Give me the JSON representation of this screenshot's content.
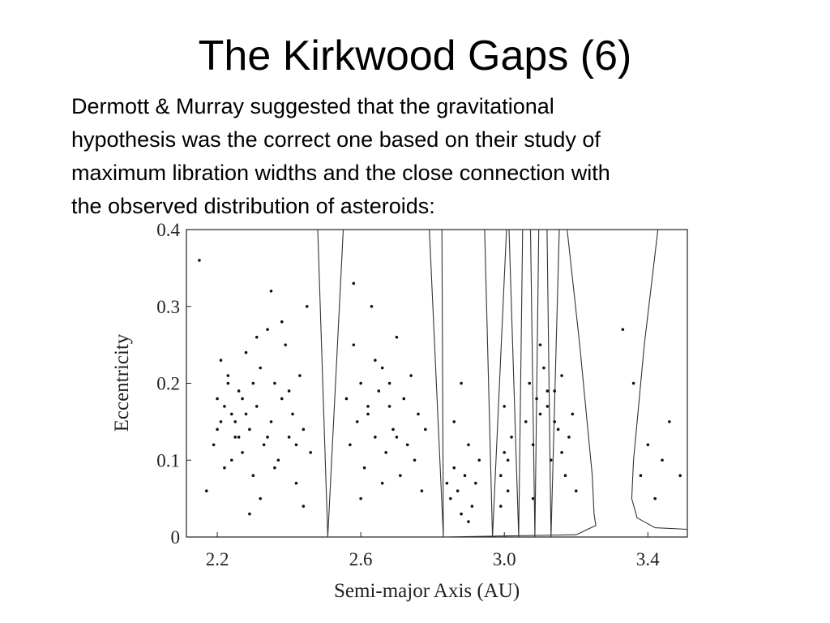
{
  "slide": {
    "title": "The Kirkwood Gaps (6)",
    "text": [
      "Dermott & Murray suggested that the gravitational",
      "hypothesis was the correct one based on their study of",
      "maximum libration widths and the close connection with",
      "the observed distribution of asteroids:"
    ]
  },
  "chart_data": {
    "type": "scatter",
    "xlabel": "Semi-major Axis (AU)",
    "ylabel": "Eccentricity",
    "xlim": [
      2.114,
      3.51
    ],
    "ylim": [
      0,
      0.4
    ],
    "xticks": [
      2.2,
      2.6,
      {
        "value": 3,
        "label": "3.0"
      },
      3.4
    ],
    "yticks": [
      0,
      0.1,
      0.2,
      0.3,
      0.4
    ],
    "color": "#111111",
    "curve_color": "#333333",
    "x": [
      2.15,
      2.17,
      2.19,
      2.2,
      2.21,
      2.22,
      2.23,
      2.24,
      2.25,
      2.26,
      2.27,
      2.28,
      2.29,
      2.3,
      2.31,
      2.32,
      2.33,
      2.34,
      2.35,
      2.36,
      2.37,
      2.38,
      2.39,
      2.4,
      2.41,
      2.42,
      2.43,
      2.44,
      2.45,
      2.46,
      2.2,
      2.22,
      2.24,
      2.26,
      2.28,
      2.3,
      2.32,
      2.34,
      2.36,
      2.38,
      2.4,
      2.42,
      2.44,
      2.25,
      2.27,
      2.23,
      2.35,
      2.31,
      2.29,
      2.21,
      2.56,
      2.57,
      2.58,
      2.59,
      2.6,
      2.61,
      2.62,
      2.63,
      2.64,
      2.65,
      2.66,
      2.67,
      2.68,
      2.69,
      2.7,
      2.71,
      2.72,
      2.73,
      2.74,
      2.75,
      2.76,
      2.77,
      2.78,
      2.6,
      2.62,
      2.64,
      2.66,
      2.68,
      2.7,
      2.58,
      2.84,
      2.85,
      2.86,
      2.87,
      2.88,
      2.89,
      2.9,
      2.91,
      2.92,
      2.93,
      2.86,
      2.88,
      2.9,
      2.99,
      3,
      3.01,
      3.02,
      2.99,
      3.01,
      3,
      3.06,
      3.07,
      3.08,
      3.09,
      3.1,
      3.11,
      3.12,
      3.13,
      3.14,
      3.15,
      3.16,
      3.17,
      3.18,
      3.19,
      3.2,
      3.08,
      3.1,
      3.12,
      3.14,
      3.16,
      3.33,
      3.36,
      3.38,
      3.4,
      3.42,
      3.44,
      3.46,
      3.49
    ],
    "y": [
      0.36,
      0.06,
      0.12,
      0.18,
      0.15,
      0.09,
      0.21,
      0.16,
      0.13,
      0.19,
      0.11,
      0.24,
      0.14,
      0.08,
      0.17,
      0.22,
      0.12,
      0.27,
      0.15,
      0.2,
      0.1,
      0.18,
      0.25,
      0.13,
      0.16,
      0.07,
      0.21,
      0.14,
      0.3,
      0.11,
      0.14,
      0.17,
      0.1,
      0.13,
      0.16,
      0.2,
      0.05,
      0.13,
      0.09,
      0.28,
      0.19,
      0.12,
      0.04,
      0.15,
      0.18,
      0.2,
      0.32,
      0.26,
      0.03,
      0.23,
      0.18,
      0.12,
      0.25,
      0.15,
      0.2,
      0.09,
      0.16,
      0.3,
      0.13,
      0.19,
      0.22,
      0.11,
      0.17,
      0.14,
      0.26,
      0.08,
      0.18,
      0.12,
      0.21,
      0.1,
      0.16,
      0.06,
      0.14,
      0.05,
      0.17,
      0.23,
      0.07,
      0.2,
      0.13,
      0.33,
      0.07,
      0.05,
      0.09,
      0.06,
      0.03,
      0.08,
      0.12,
      0.04,
      0.07,
      0.1,
      0.15,
      0.2,
      0.02,
      0.08,
      0.11,
      0.06,
      0.13,
      0.04,
      0.1,
      0.17,
      0.15,
      0.2,
      0.12,
      0.18,
      0.16,
      0.22,
      0.17,
      0.1,
      0.19,
      0.14,
      0.21,
      0.08,
      0.13,
      0.16,
      0.06,
      0.05,
      0.25,
      0.19,
      0.15,
      0.11,
      0.27,
      0.2,
      0.08,
      0.12,
      0.05,
      0.1,
      0.15,
      0.08
    ],
    "curves": [
      {
        "x": [
          2.48,
          2.508,
          2.551
        ],
        "y": [
          0.4,
          0,
          0.4
        ]
      },
      {
        "x": [
          2.791,
          2.83,
          2.826
        ],
        "y": [
          0.4,
          0,
          0.4
        ]
      },
      {
        "x": [
          2.945,
          2.967,
          3.006
        ],
        "y": [
          0.4,
          0,
          0.4
        ]
      },
      {
        "x": [
          3.013,
          3.04,
          3.051
        ],
        "y": [
          0.4,
          0,
          0.4
        ]
      },
      {
        "x": [
          3.073,
          3.085,
          3.096
        ],
        "y": [
          0.4,
          0,
          0.4
        ]
      },
      {
        "x": [
          3.119,
          3.13,
          3.153
        ],
        "y": [
          0.4,
          0,
          0.4
        ]
      },
      {
        "x": [
          3.175,
          3.21,
          3.245,
          3.25,
          3.255,
          3.2,
          2.83
        ],
        "y": [
          0.4,
          0.25,
          0.08,
          0.03,
          0.015,
          0.003,
          0
        ]
      },
      {
        "x": [
          3.428,
          3.39,
          3.36,
          3.355,
          3.37,
          3.42,
          3.51
        ],
        "y": [
          0.4,
          0.25,
          0.1,
          0.05,
          0.025,
          0.012,
          0.01
        ]
      }
    ]
  }
}
